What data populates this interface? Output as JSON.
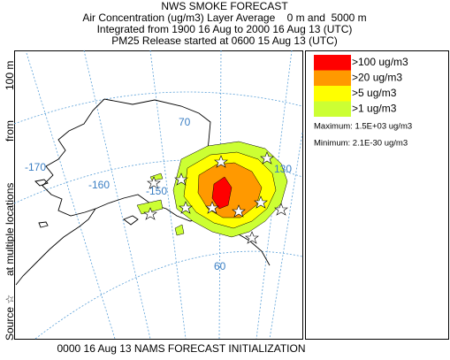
{
  "header": {
    "title": "NWS SMOKE FORECAST",
    "lines": [
      "Air Concentration (ug/m3) Layer Average    0 m and  5000 m",
      "Integrated from 1900 16 Aug to 2000 16 Aug 13 (UTC)",
      "PM25 Release started at 0600 15 Aug 13 (UTC)"
    ]
  },
  "source_label": {
    "parts": [
      "Source ☆",
      "at multiple locations",
      "from",
      "100 m"
    ]
  },
  "legend": {
    "items": [
      {
        "label": ">100 ug/m3",
        "color": "#ff0000"
      },
      {
        "label": ">20 ug/m3",
        "color": "#ff9900"
      },
      {
        "label": ">5 ug/m3",
        "color": "#ffff00"
      },
      {
        "label": ">1 ug/m3",
        "color": "#ccff33"
      }
    ],
    "maximum": "Maximum: 1.5E+03 ug/m3",
    "minimum": "Minimum: 2.1E-30 ug/m3"
  },
  "map": {
    "labels": [
      "-170",
      "-160",
      "-150",
      "70",
      "130",
      "60"
    ]
  },
  "footer": "0000 16 Aug 13 NAMS FORECAST INITIALIZATION"
}
